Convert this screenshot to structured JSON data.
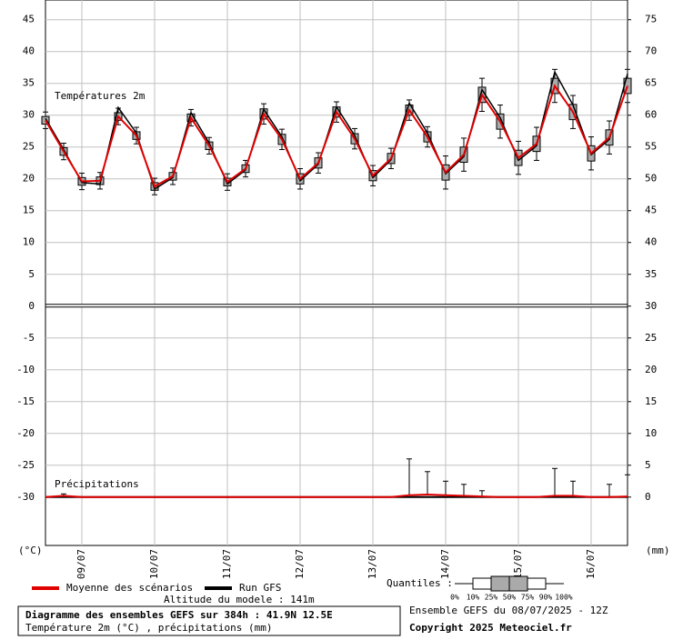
{
  "chart_data": {
    "type": "ensemble",
    "annotations": {
      "temp_label": "Températures 2m",
      "precip_label": "Précipitations",
      "y_unit": "(°C)",
      "y2_unit": "(mm)",
      "altitude": "Altitude du modele : 141m",
      "quantiles_title": "Quantiles :",
      "run": "Ensemble GEFS du 08/07/2025 - 12Z",
      "title": "Diagramme des ensembles GEFS sur 384h : 41.9N 12.5E",
      "subtitle": "Température 2m (°C) , précipitations (mm)",
      "copyright": "Copyright 2025 Meteociel.fr"
    },
    "quantile_labels": [
      "0%",
      "10%",
      "25%",
      "50%",
      "75%",
      "90%",
      "100%"
    ],
    "x": [
      0,
      6,
      12,
      18,
      24,
      30,
      36,
      42,
      48,
      54,
      60,
      66,
      72,
      78,
      84,
      90,
      96,
      102,
      108,
      114,
      120,
      126,
      132,
      138,
      144,
      150,
      156,
      162,
      168,
      174,
      180,
      186,
      192
    ],
    "xlim": [
      0,
      192
    ],
    "xticks": [
      {
        "value": 12,
        "label": "09/07"
      },
      {
        "value": 36,
        "label": "10/07"
      },
      {
        "value": 60,
        "label": "11/07"
      },
      {
        "value": 84,
        "label": "12/07"
      },
      {
        "value": 108,
        "label": "13/07"
      },
      {
        "value": 132,
        "label": "14/07"
      },
      {
        "value": 156,
        "label": "15/07"
      },
      {
        "value": 180,
        "label": "16/07"
      }
    ],
    "ylim": [
      -37.6,
      48.1
    ],
    "yticks": [
      -30,
      -25,
      -20,
      -15,
      -10,
      -5,
      0,
      5,
      10,
      15,
      20,
      25,
      30,
      35,
      40,
      45
    ],
    "y2lim": [
      -7.6,
      78.1
    ],
    "y2ticks": [
      0,
      5,
      10,
      15,
      20,
      25,
      30,
      35,
      40,
      45,
      50,
      55,
      60,
      65,
      70,
      75
    ],
    "grid": true,
    "series": [
      {
        "name": "Moyenne des scénarios",
        "color": "#e00000",
        "values": [
          29.2,
          24.3,
          19.6,
          19.7,
          29.8,
          26.8,
          18.8,
          20.4,
          29.6,
          25.2,
          19.5,
          21.6,
          30.2,
          26.2,
          20.0,
          22.5,
          30.5,
          26.3,
          20.5,
          23.2,
          30.8,
          26.6,
          21.0,
          23.8,
          33.2,
          29.0,
          23.3,
          25.5,
          34.6,
          30.5,
          24.0,
          26.5,
          34.6
        ]
      },
      {
        "name": "Run GFS",
        "color": "#000000",
        "values": [
          29.5,
          24.6,
          19.4,
          19.2,
          31.2,
          27.2,
          18.4,
          20.2,
          30.4,
          25.6,
          19.2,
          21.4,
          30.9,
          26.6,
          19.7,
          22.3,
          31.3,
          26.8,
          20.2,
          23.0,
          31.9,
          27.2,
          20.8,
          23.5,
          34.0,
          29.6,
          22.9,
          25.2,
          36.8,
          31.6,
          23.8,
          26.2,
          36.5
        ]
      }
    ],
    "quantiles": {
      "q10": [
        27.9,
        23.0,
        18.3,
        18.4,
        28.5,
        25.5,
        17.5,
        19.1,
        28.3,
        23.9,
        18.2,
        20.3,
        28.6,
        24.6,
        18.4,
        20.9,
        28.9,
        24.7,
        18.9,
        21.6,
        29.2,
        25.0,
        18.4,
        21.2,
        30.6,
        26.4,
        20.7,
        22.9,
        32.0,
        27.9,
        21.4,
        23.9,
        32.0
      ],
      "q25": [
        28.6,
        23.7,
        19.0,
        19.1,
        29.2,
        26.2,
        18.2,
        19.8,
        29.0,
        24.6,
        18.9,
        21.0,
        29.4,
        25.4,
        19.2,
        21.7,
        29.7,
        25.5,
        19.7,
        22.4,
        30.0,
        25.8,
        19.8,
        22.6,
        32.0,
        27.8,
        22.1,
        24.3,
        33.4,
        29.3,
        22.8,
        25.3,
        33.4
      ],
      "q75": [
        29.8,
        24.9,
        20.2,
        20.3,
        30.4,
        27.4,
        19.4,
        21.0,
        30.2,
        25.8,
        20.1,
        22.2,
        31.0,
        27.0,
        20.8,
        23.3,
        31.3,
        27.1,
        21.3,
        24.0,
        31.6,
        27.4,
        22.2,
        25.0,
        34.4,
        30.2,
        24.5,
        26.7,
        35.8,
        31.7,
        25.2,
        27.7,
        35.8
      ],
      "q90": [
        30.5,
        25.6,
        20.9,
        21.0,
        31.1,
        28.1,
        20.1,
        21.7,
        30.9,
        26.5,
        20.8,
        22.9,
        31.8,
        27.8,
        21.6,
        24.1,
        32.1,
        27.9,
        22.1,
        24.8,
        32.4,
        28.2,
        23.6,
        26.4,
        35.8,
        31.6,
        25.9,
        28.1,
        37.2,
        33.1,
        26.6,
        29.1,
        37.2
      ]
    },
    "precipitation": {
      "axis": "y2",
      "color": "#e00000",
      "mean": [
        0,
        0.2,
        0,
        0,
        0,
        0,
        0,
        0,
        0,
        0,
        0,
        0,
        0,
        0,
        0,
        0,
        0,
        0,
        0,
        0,
        0.3,
        0.4,
        0.3,
        0.2,
        0.1,
        0,
        0,
        0,
        0.2,
        0.2,
        0,
        0,
        0.1
      ],
      "q90": [
        0,
        0.5,
        0,
        0,
        0,
        0,
        0,
        0,
        0,
        0,
        0,
        0,
        0,
        0,
        0,
        0,
        0,
        0,
        0,
        0,
        6.0,
        4.0,
        2.5,
        2.0,
        1.0,
        0,
        0,
        0,
        4.5,
        2.5,
        0,
        2.0,
        3.5
      ]
    }
  }
}
